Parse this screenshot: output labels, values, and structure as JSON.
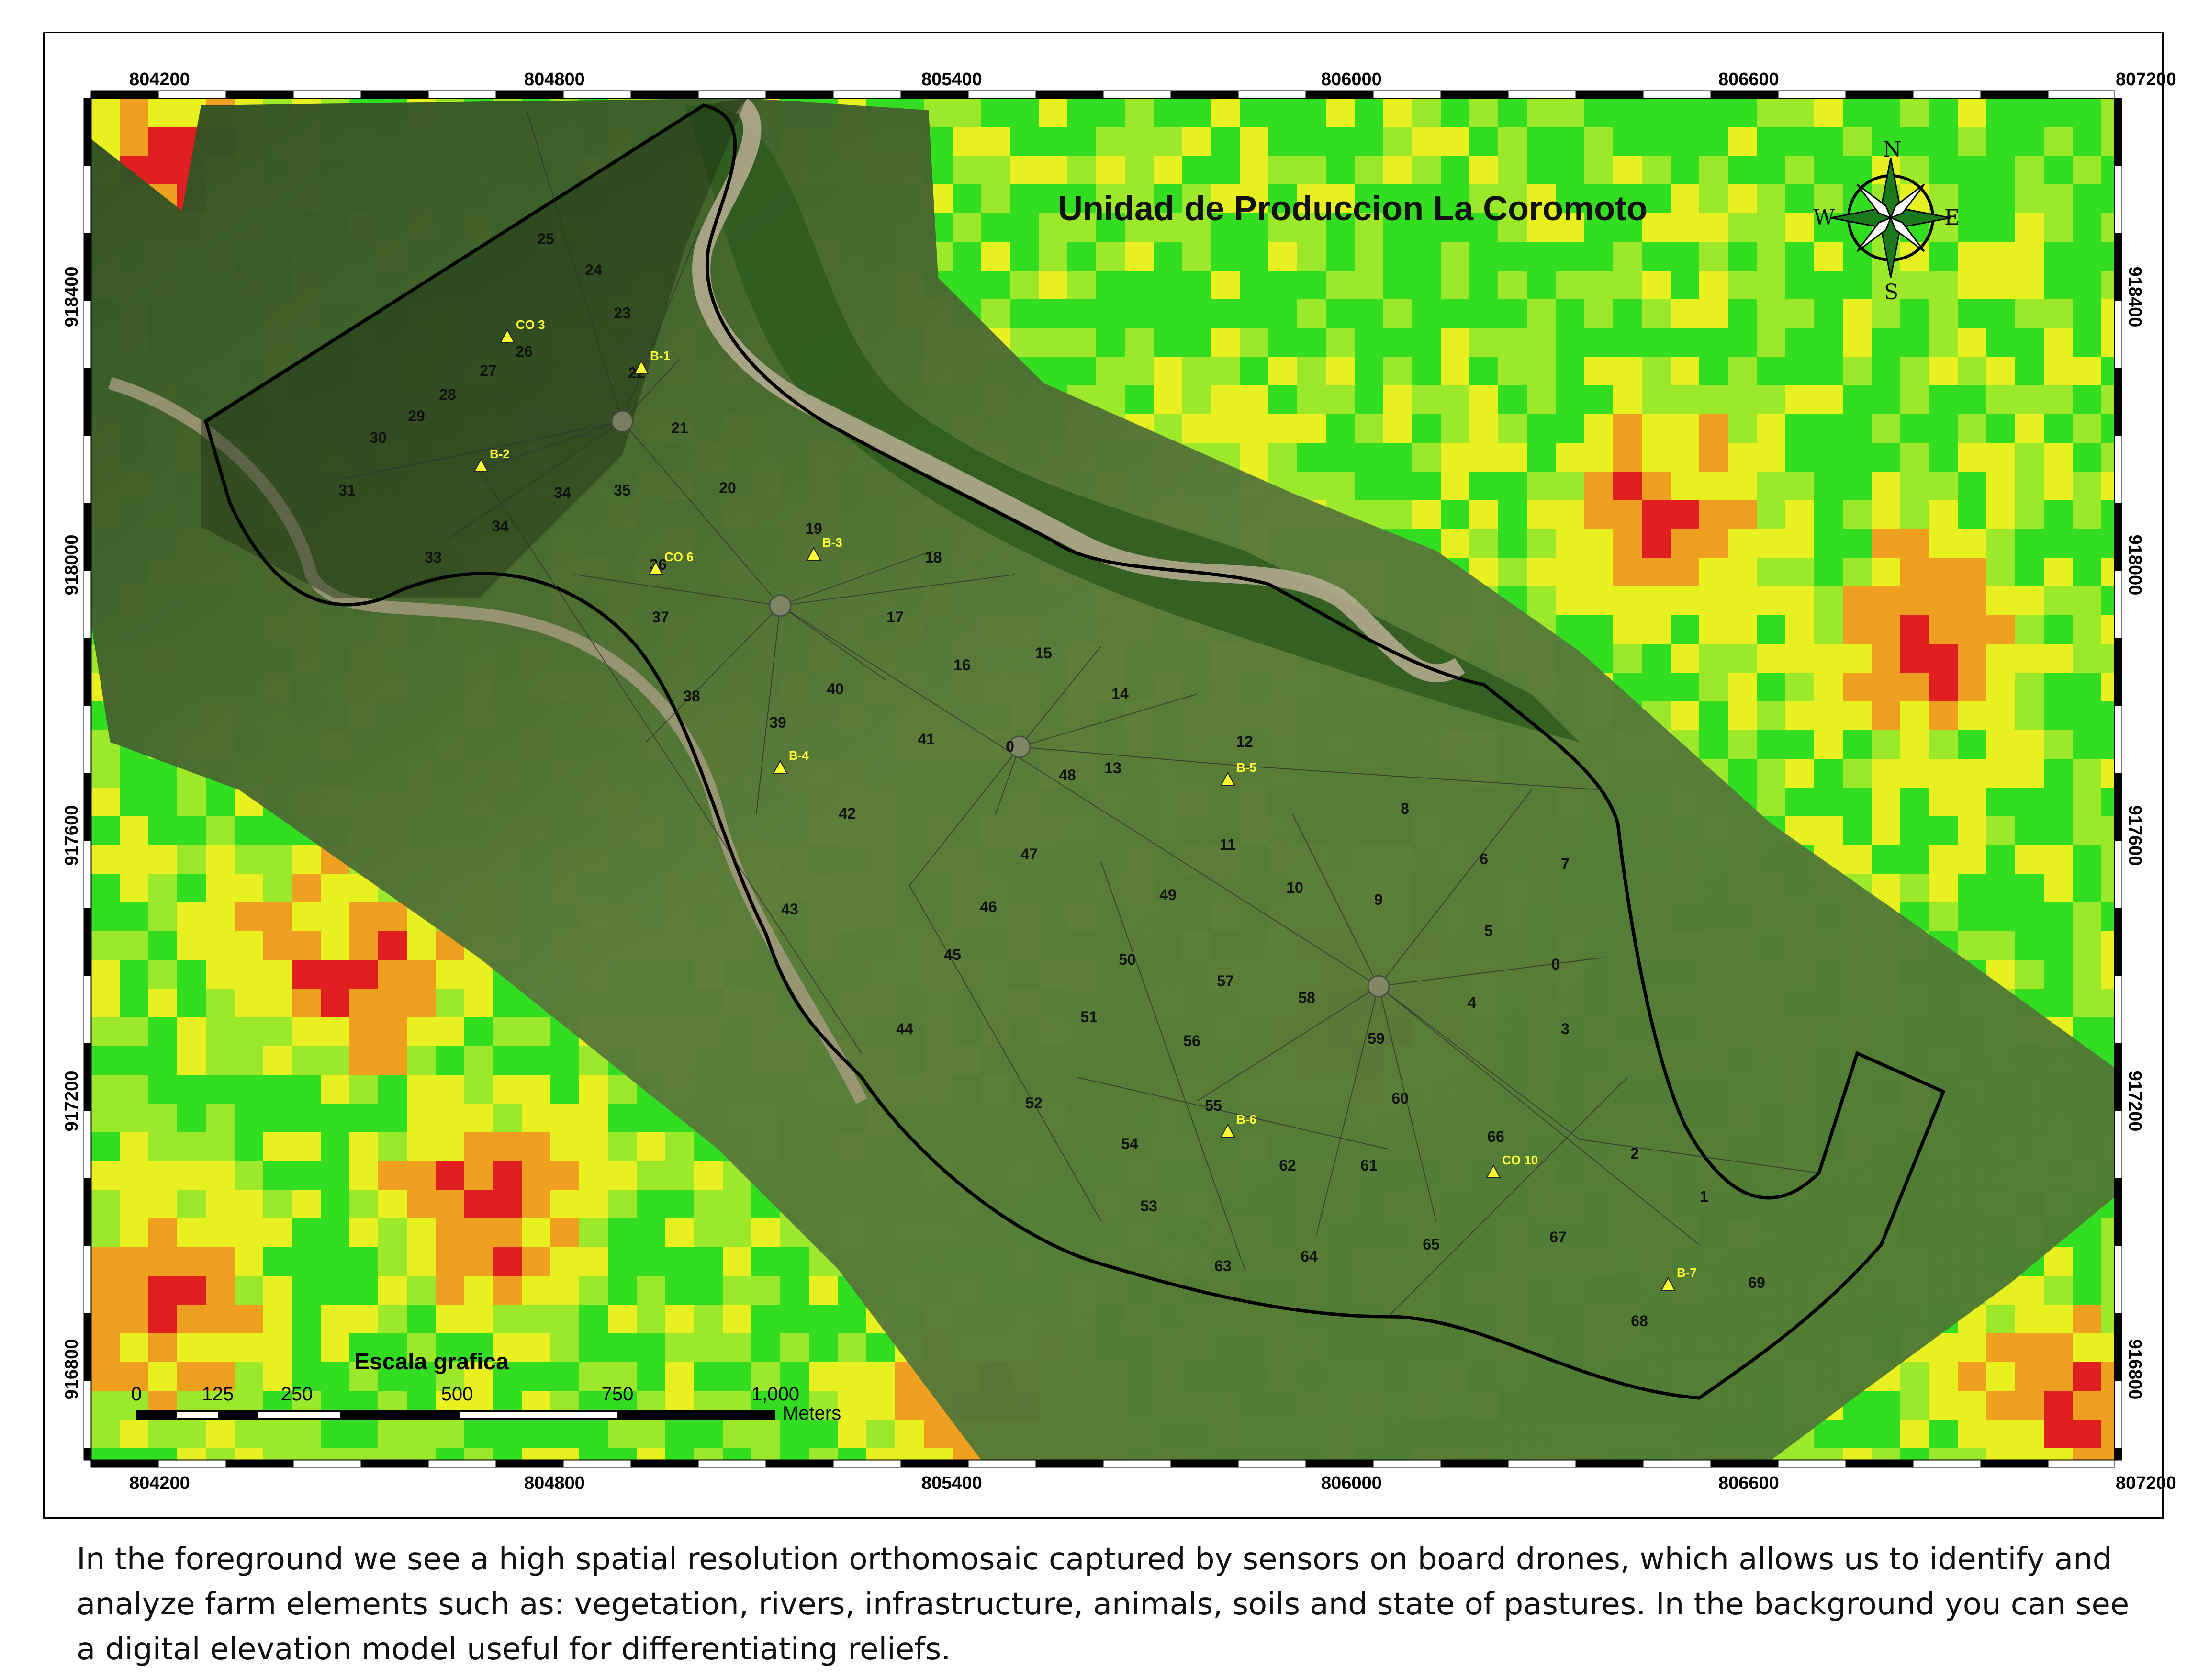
{
  "map": {
    "title": "Unidad de Produccion La Coromoto",
    "x_ticks": [
      "804200",
      "804800",
      "805400",
      "806000",
      "806600",
      "807200"
    ],
    "y_ticks": [
      "918400",
      "918000",
      "917600",
      "917200",
      "916800"
    ],
    "compass": {
      "n": "N",
      "s": "S",
      "e": "E",
      "w": "W"
    },
    "scale_bar": {
      "title": "Escala grafica",
      "labels": [
        "0",
        "125",
        "250",
        "500",
        "750",
        "1,000"
      ],
      "unit": "Meters"
    },
    "plots": [
      {
        "id": "0"
      },
      {
        "id": "0"
      },
      {
        "id": "1"
      },
      {
        "id": "2"
      },
      {
        "id": "3"
      },
      {
        "id": "4"
      },
      {
        "id": "5"
      },
      {
        "id": "6"
      },
      {
        "id": "7"
      },
      {
        "id": "8"
      },
      {
        "id": "9"
      },
      {
        "id": "10"
      },
      {
        "id": "11"
      },
      {
        "id": "12"
      },
      {
        "id": "13"
      },
      {
        "id": "14"
      },
      {
        "id": "15"
      },
      {
        "id": "16"
      },
      {
        "id": "17"
      },
      {
        "id": "18"
      },
      {
        "id": "19"
      },
      {
        "id": "20"
      },
      {
        "id": "21"
      },
      {
        "id": "22"
      },
      {
        "id": "23"
      },
      {
        "id": "24"
      },
      {
        "id": "25"
      },
      {
        "id": "26"
      },
      {
        "id": "27"
      },
      {
        "id": "28"
      },
      {
        "id": "29"
      },
      {
        "id": "30"
      },
      {
        "id": "31"
      },
      {
        "id": "33"
      },
      {
        "id": "34"
      },
      {
        "id": "34"
      },
      {
        "id": "35"
      },
      {
        "id": "36"
      },
      {
        "id": "37"
      },
      {
        "id": "38"
      },
      {
        "id": "39"
      },
      {
        "id": "40"
      },
      {
        "id": "41"
      },
      {
        "id": "42"
      },
      {
        "id": "43"
      },
      {
        "id": "44"
      },
      {
        "id": "45"
      },
      {
        "id": "46"
      },
      {
        "id": "47"
      },
      {
        "id": "48"
      },
      {
        "id": "49"
      },
      {
        "id": "50"
      },
      {
        "id": "51"
      },
      {
        "id": "52"
      },
      {
        "id": "53"
      },
      {
        "id": "54"
      },
      {
        "id": "55"
      },
      {
        "id": "56"
      },
      {
        "id": "57"
      },
      {
        "id": "58"
      },
      {
        "id": "59"
      },
      {
        "id": "60"
      },
      {
        "id": "61"
      },
      {
        "id": "62"
      },
      {
        "id": "63"
      },
      {
        "id": "64"
      },
      {
        "id": "65"
      },
      {
        "id": "66"
      },
      {
        "id": "67"
      },
      {
        "id": "68"
      },
      {
        "id": "69"
      }
    ],
    "control_points": [
      "CO 3",
      "B-1",
      "B-2",
      "CO 6",
      "B-3",
      "B-4",
      "B-5",
      "B-6",
      "CO 10",
      "B-7"
    ]
  },
  "caption": "In the foreground we see a high spatial resolution orthomosaic captured by sensors on board drones, which allows us to identify and analyze farm elements such as: vegetation, rivers, infrastructure, animals, soils and state of pastures. In the background you can see a digital elevation model useful for differentiating reliefs.",
  "colors": {
    "dem_green": "#33dd22",
    "dem_yellow": "#e8f020",
    "dem_orange": "#f0a020",
    "dem_red": "#e02020",
    "ortho": "#4a6e2e",
    "marker": "#ffff33"
  }
}
